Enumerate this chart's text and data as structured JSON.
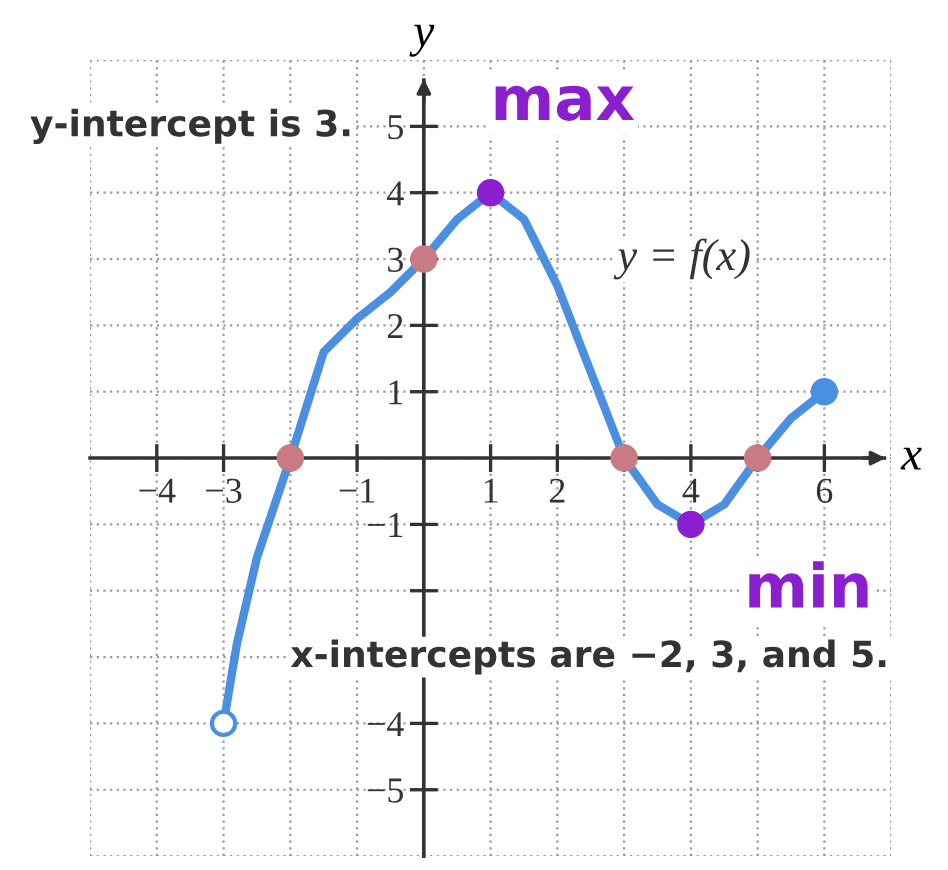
{
  "chart_data": {
    "type": "line",
    "xlabel": "x",
    "ylabel": "y",
    "xlim": [
      -5,
      7
    ],
    "ylim": [
      -6,
      6
    ],
    "xticks": [
      -4,
      -3,
      {
        "value": -2,
        "label": null
      },
      -1,
      1,
      2,
      {
        "value": 3,
        "label": null
      },
      4,
      {
        "value": 5,
        "label": null
      },
      6
    ],
    "yticks": [
      -5,
      -4,
      {
        "value": -2,
        "label": null
      },
      -1,
      1,
      2,
      3,
      4,
      5
    ],
    "grid": true,
    "line_style": "solid",
    "marker": "none",
    "series": [
      {
        "color": "#4a8fe0",
        "x": [
          -3,
          -2.8,
          -2.5,
          -2,
          -1.5,
          -1,
          -0.5,
          0,
          0.5,
          1,
          1.5,
          2,
          2.5,
          3,
          3.5,
          4,
          4.5,
          5,
          5.5,
          6
        ],
        "values": [
          -4,
          -2.8,
          -1.5,
          0,
          1.6,
          2.1,
          2.5,
          3,
          3.6,
          4,
          3.6,
          2.6,
          1.3,
          0,
          -0.7,
          -1,
          -0.7,
          0,
          0.6,
          1
        ]
      },
      {
        "type": "scatter",
        "marker": "circle",
        "color": "#4a8fe0",
        "colors": [
          "#ffffff",
          "#4a8fe0"
        ],
        "x": [
          -3,
          6
        ],
        "values": [
          -4,
          1
        ]
      },
      {
        "type": "scatter",
        "marker": "circle",
        "color": "#c87a85",
        "x": [
          -2,
          0,
          3,
          5
        ],
        "values": [
          0,
          3,
          0,
          0
        ]
      },
      {
        "type": "scatter",
        "marker": "circle",
        "color": "#8b1fd0",
        "x": [
          1,
          4
        ],
        "values": [
          4,
          -1
        ]
      }
    ],
    "annotations": [
      "y-intercept is 3.",
      {
        "text": "max",
        "x": 1,
        "y": 4
      },
      "y = f(x)",
      {
        "text": "min",
        "x": 4,
        "y": -1
      },
      "x-intercepts are −2, 3, and 5."
    ]
  }
}
